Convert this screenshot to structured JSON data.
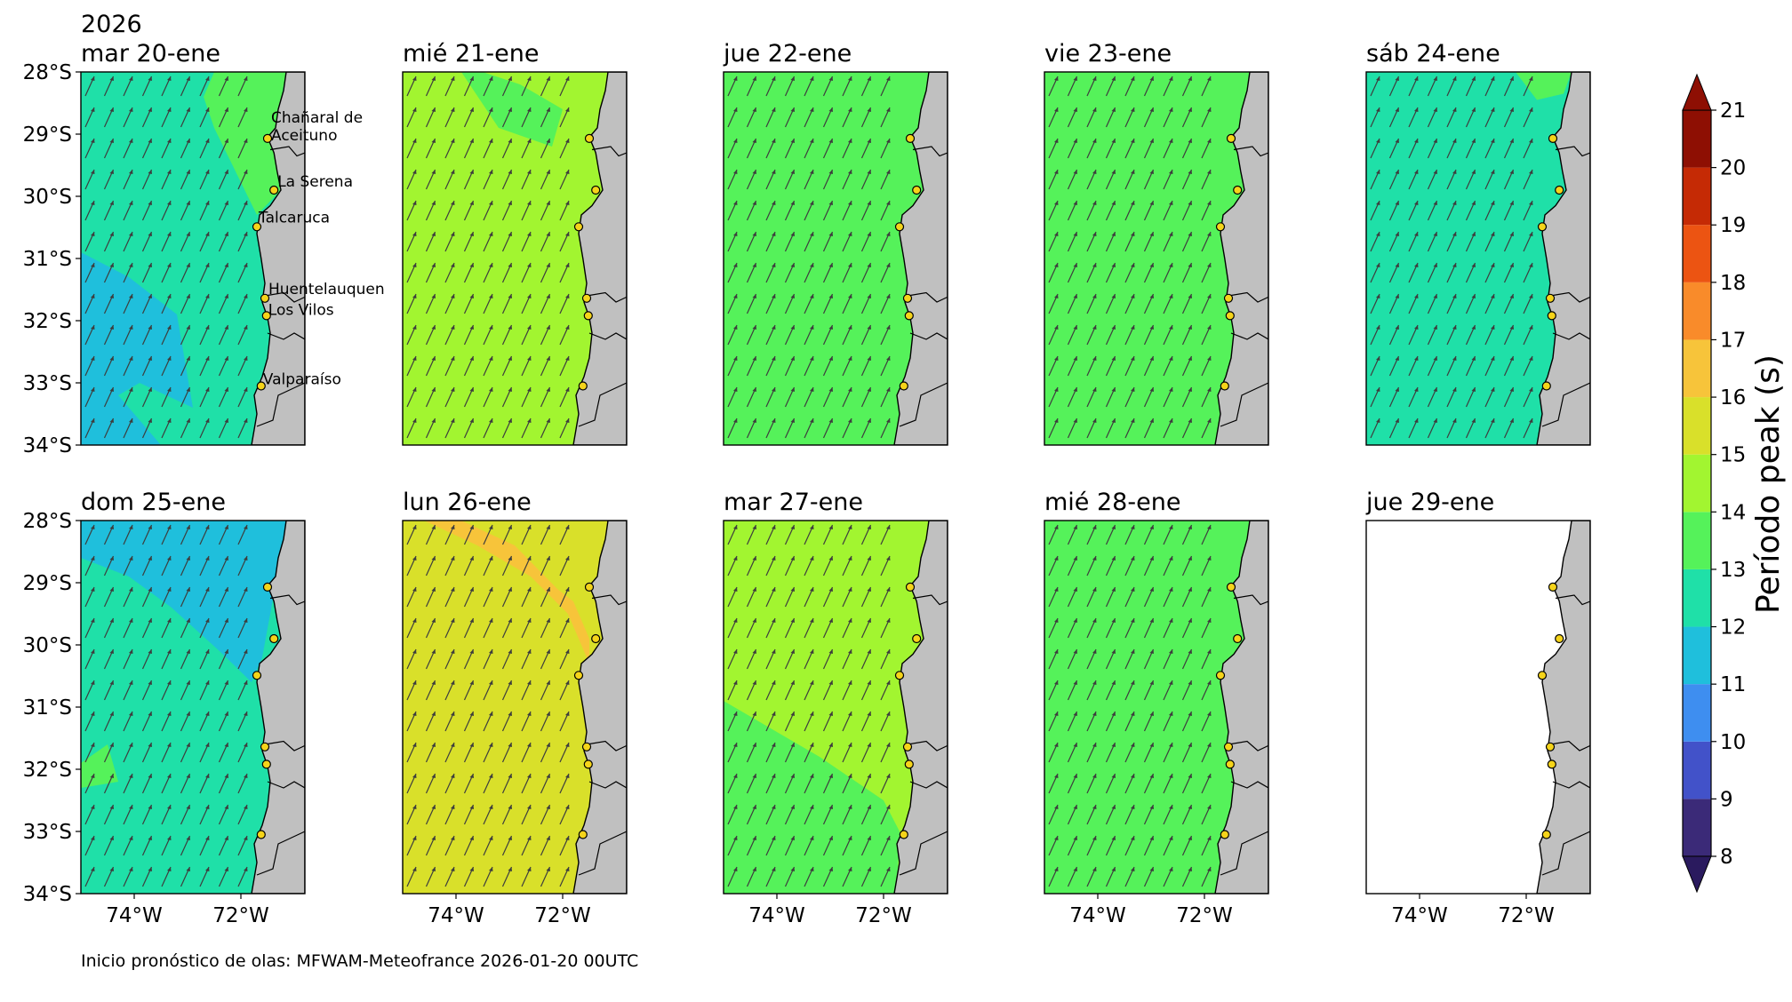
{
  "figure": {
    "year_label": "2026",
    "footer": "Inicio pronóstico de olas: MFWAM-Meteofrance 2026-01-20 00UTC"
  },
  "colorbar": {
    "label": "Período peak (s)",
    "ticks": [
      "8",
      "9",
      "10",
      "11",
      "12",
      "13",
      "14",
      "15",
      "16",
      "17",
      "18",
      "19",
      "20",
      "21"
    ],
    "colors": [
      "#3b2a78",
      "#4252c9",
      "#3e8ef0",
      "#1fbfdc",
      "#1fe0a8",
      "#55f25a",
      "#a2f530",
      "#d9e02a",
      "#f7c43a",
      "#f98b2a",
      "#ec5412",
      "#c52a05",
      "#8e0f03"
    ]
  },
  "axes": {
    "lat_ticks": [
      "28°S",
      "29°S",
      "30°S",
      "31°S",
      "32°S",
      "33°S",
      "34°S"
    ],
    "lon_ticks": [
      "74°W",
      "72°W"
    ]
  },
  "locations": [
    {
      "name": "Chañaral de Aceituno",
      "lines": [
        "Chañaral de",
        "Aceituno"
      ]
    },
    {
      "name": "La Serena",
      "lines": [
        "La Serena"
      ]
    },
    {
      "name": "Talcaruca",
      "lines": [
        "Talcaruca"
      ]
    },
    {
      "name": "Huentelauquen",
      "lines": [
        "Huentelauquen"
      ]
    },
    {
      "name": "Los Vilos",
      "lines": [
        "Los Vilos"
      ]
    },
    {
      "name": "Valparaíso",
      "lines": [
        "Valparaíso"
      ]
    }
  ],
  "panels": [
    {
      "title": "mar 20-ene",
      "base_period": 12.5,
      "zones": [
        {
          "shape": "ne-band",
          "period": 13.5
        },
        {
          "shape": "sw-lobe",
          "period": 11.5
        }
      ]
    },
    {
      "title": "mié 21-ene",
      "base_period": 14.5,
      "zones": [
        {
          "shape": "north-patch",
          "period": 13.5
        }
      ]
    },
    {
      "title": "jue 22-ene",
      "base_period": 13.5,
      "zones": []
    },
    {
      "title": "vie 23-ene",
      "base_period": 13.5,
      "zones": []
    },
    {
      "title": "sáb 24-ene",
      "base_period": 12.5,
      "zones": [
        {
          "shape": "ne-corner",
          "period": 13.5
        }
      ]
    },
    {
      "title": "dom 25-ene",
      "base_period": 12.5,
      "zones": [
        {
          "shape": "north-band",
          "period": 11.5
        },
        {
          "shape": "west-spot",
          "period": 13.5
        }
      ]
    },
    {
      "title": "lun 26-ene",
      "base_period": 15.5,
      "zones": [
        {
          "shape": "north-streak",
          "period": 16.5
        }
      ]
    },
    {
      "title": "mar 27-ene",
      "base_period": 14.5,
      "zones": [
        {
          "shape": "south-wedge",
          "period": 13.5
        }
      ]
    },
    {
      "title": "mié 28-ene",
      "base_period": 13.5,
      "zones": []
    },
    {
      "title": "jue 29-ene",
      "base_period": null,
      "zones": []
    }
  ]
}
